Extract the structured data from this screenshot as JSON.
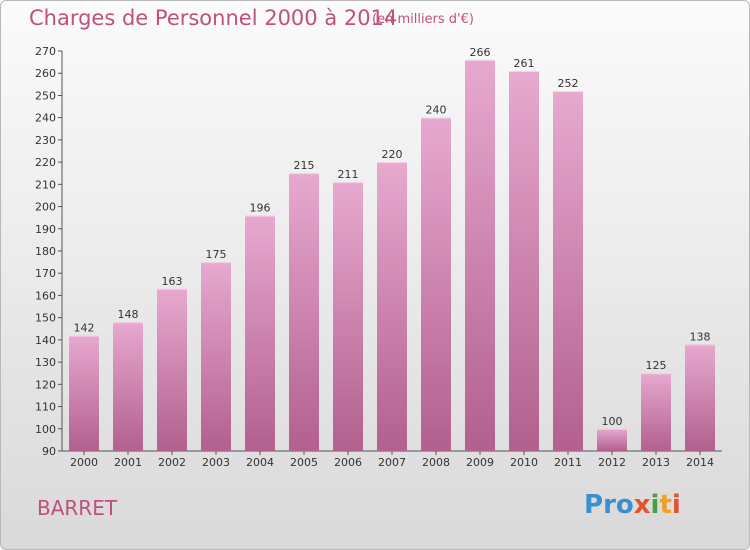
{
  "header": {
    "title": "Charges de Personnel 2000 à 2014",
    "subtitle": "(en milliers d'€)"
  },
  "footer": {
    "commune": "BARRET",
    "logo_text": "Proxiti",
    "logo_letters": [
      {
        "ch": "P",
        "color": "#3a8fd0"
      },
      {
        "ch": "r",
        "color": "#3a8fd0"
      },
      {
        "ch": "o",
        "color": "#3a8fd0"
      },
      {
        "ch": "x",
        "color": "#e8502a"
      },
      {
        "ch": "i",
        "color": "#4ca03c"
      },
      {
        "ch": "t",
        "color": "#f0a020"
      },
      {
        "ch": "i",
        "color": "#e8502a"
      }
    ]
  },
  "colors": {
    "accent": "#c0507e",
    "bar_top": "#e7a9cf",
    "bar_bottom": "#b2608e"
  },
  "chart_data": {
    "type": "bar",
    "title": "Charges de Personnel 2000 à 2014",
    "subtitle": "(en milliers d'€)",
    "categories": [
      "2000",
      "2001",
      "2002",
      "2003",
      "2004",
      "2005",
      "2006",
      "2007",
      "2008",
      "2009",
      "2010",
      "2011",
      "2012",
      "2013",
      "2014"
    ],
    "values": [
      142,
      148,
      163,
      175,
      196,
      215,
      211,
      220,
      240,
      266,
      261,
      252,
      100,
      125,
      138
    ],
    "ylim": [
      90,
      270
    ],
    "yticks": [
      90,
      100,
      110,
      120,
      130,
      140,
      150,
      160,
      170,
      180,
      190,
      200,
      210,
      220,
      230,
      240,
      250,
      260,
      270
    ],
    "grid": false,
    "data_labels": true
  }
}
